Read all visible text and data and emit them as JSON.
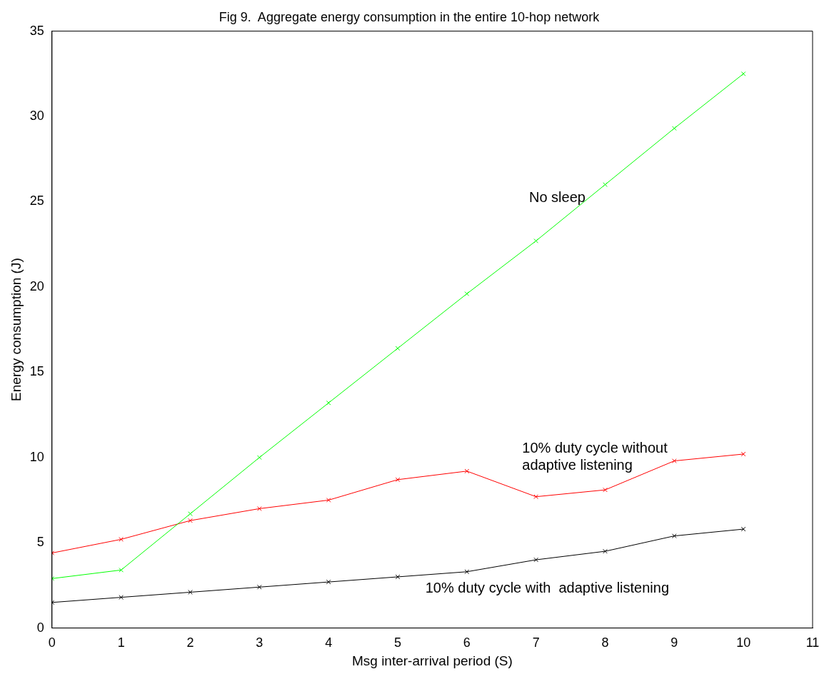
{
  "chart_data": {
    "type": "line",
    "title": "Fig 9.  Aggregate energy consumption in the entire 10-hop network",
    "xlabel": "Msg inter-arrival period (S)",
    "ylabel": "Energy consumption (J)",
    "x": [
      0,
      1,
      2,
      3,
      4,
      5,
      6,
      7,
      8,
      9,
      10
    ],
    "series": [
      {
        "name": "No sleep",
        "color": "#00ff00",
        "values": [
          2.9,
          3.4,
          6.7,
          10.0,
          13.2,
          16.4,
          19.6,
          22.7,
          26.0,
          29.3,
          32.5
        ]
      },
      {
        "name": "10% duty cycle without adaptive listening",
        "color": "#ff0000",
        "values": [
          4.4,
          5.2,
          6.3,
          7.0,
          7.5,
          8.7,
          9.2,
          7.7,
          8.1,
          9.8,
          10.2
        ]
      },
      {
        "name": "10% duty cycle with  adaptive listening",
        "color": "#000000",
        "values": [
          1.5,
          1.8,
          2.1,
          2.4,
          2.7,
          3.0,
          3.3,
          4.0,
          4.5,
          5.4,
          5.8
        ]
      }
    ],
    "xlim": [
      0,
      11
    ],
    "xticks": [
      0,
      1,
      2,
      3,
      4,
      5,
      6,
      7,
      8,
      9,
      10,
      11
    ],
    "ylim": [
      0,
      35
    ],
    "yticks": [
      0,
      5,
      10,
      15,
      20,
      25,
      30,
      35
    ],
    "grid": false,
    "legend": false,
    "marker": "cross",
    "line_style": "solid"
  }
}
